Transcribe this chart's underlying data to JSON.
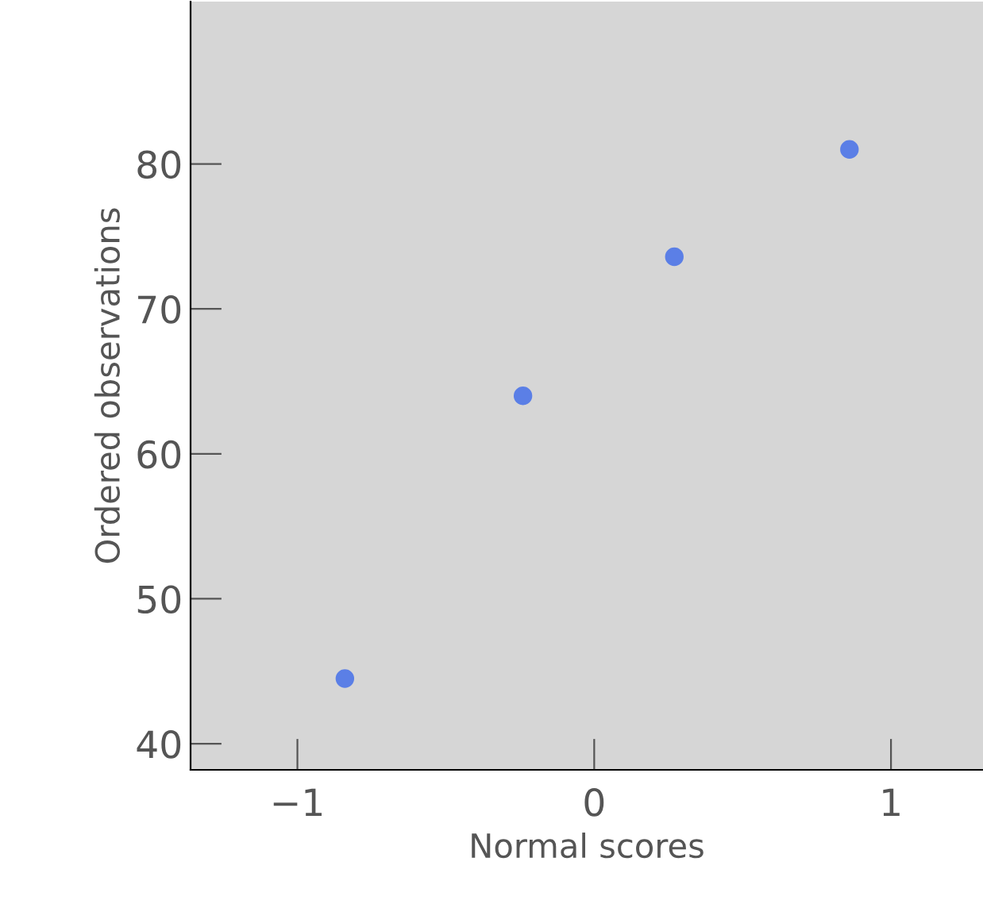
{
  "chart_data": {
    "type": "scatter",
    "xlabel": "Normal scores",
    "ylabel": "Ordered observations",
    "x": [
      -0.84,
      -0.24,
      0.27,
      0.86
    ],
    "series": [
      {
        "color": "#5b7fe6",
        "values": [
          44.5,
          64.0,
          73.6,
          81.0
        ]
      }
    ],
    "xlim": [
      -1.36,
      1.31
    ],
    "xticks": [
      {
        "value": -1,
        "label": "−1"
      },
      0,
      1
    ],
    "ylim": [
      38.2,
      91.2
    ],
    "yticks": [
      40,
      50,
      60,
      70,
      80
    ],
    "marker": "circle",
    "grid": false,
    "legend": false
  }
}
